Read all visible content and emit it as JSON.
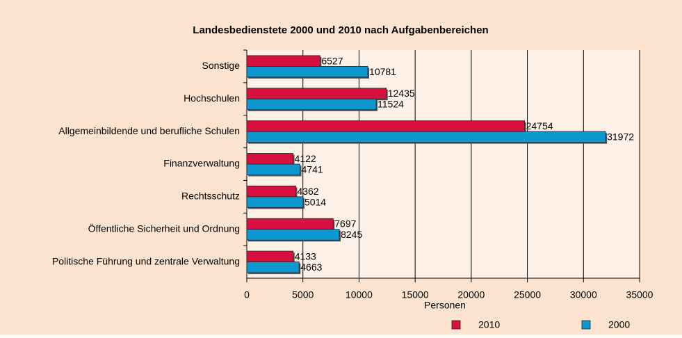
{
  "chart_data": {
    "type": "hbar",
    "title": "Landesbedienstete 2000 und 2010 nach Aufgabenbereichen",
    "xlabel": "Personen",
    "categories": [
      "Sonstige",
      "Hochschulen",
      "Allgemeinbildende und berufliche Schulen",
      "Finanzverwaltung",
      "Rechtsschutz",
      "Öffentliche Sicherheit und Ordnung",
      "Politische Führung und zentrale Verwaltung"
    ],
    "series": [
      {
        "name": "2010",
        "color": "#d8103f",
        "values": [
          6527,
          12435,
          24754,
          4122,
          4362,
          7697,
          4133
        ]
      },
      {
        "name": "2000",
        "color": "#0e96cf",
        "values": [
          10781,
          11524,
          31972,
          4741,
          5014,
          8245,
          4663
        ]
      }
    ],
    "xlim": [
      0,
      35000
    ],
    "xticks": [
      0,
      5000,
      10000,
      15000,
      20000,
      25000,
      30000,
      35000
    ],
    "grid": true,
    "legend": "bottom"
  }
}
